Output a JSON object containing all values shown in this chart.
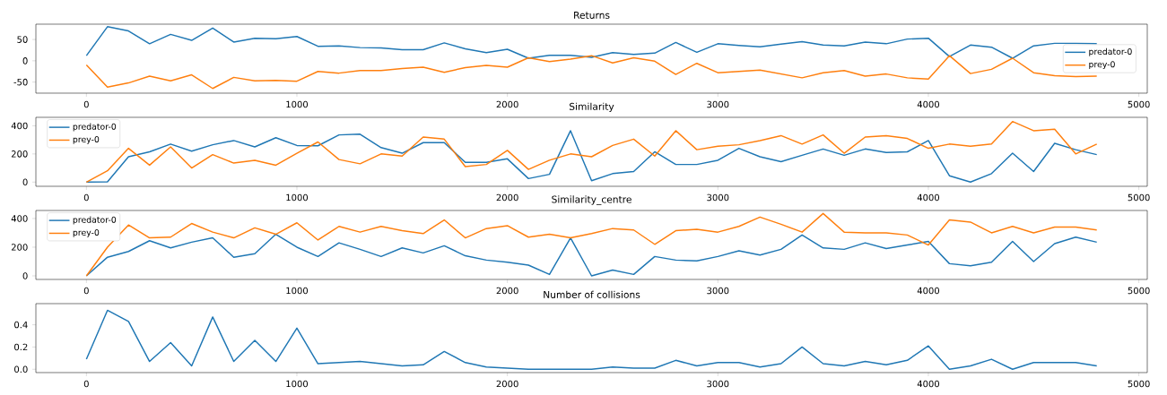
{
  "chart_data": [
    {
      "type": "line",
      "title": "Returns",
      "x": [
        0,
        100,
        200,
        300,
        400,
        500,
        600,
        700,
        800,
        900,
        1000,
        1100,
        1200,
        1300,
        1400,
        1500,
        1600,
        1700,
        1800,
        1900,
        2000,
        2100,
        2200,
        2300,
        2400,
        2500,
        2600,
        2700,
        2800,
        2900,
        3000,
        3100,
        3200,
        3300,
        3400,
        3500,
        3600,
        3700,
        3800,
        3900,
        4000,
        4100,
        4200,
        4300,
        4400,
        4500,
        4600,
        4700,
        4800
      ],
      "xlim": [
        -240,
        5040
      ],
      "xticks": [
        0,
        1000,
        2000,
        3000,
        4000,
        5000
      ],
      "ylim": [
        -76,
        86
      ],
      "yticks": [
        -50,
        0,
        50
      ],
      "legend": "right",
      "series": [
        {
          "name": "predator-0",
          "color": "#1f77b4",
          "values": [
            12,
            80,
            70,
            40,
            62,
            48,
            77,
            44,
            53,
            52,
            57,
            34,
            35,
            31,
            30,
            26,
            26,
            42,
            28,
            19,
            27,
            6,
            13,
            13,
            8,
            19,
            15,
            18,
            43,
            20,
            40,
            36,
            33,
            39,
            45,
            37,
            35,
            44,
            40,
            51,
            53,
            10,
            37,
            32,
            6,
            35,
            41,
            41,
            40
          ]
        },
        {
          "name": "prey-0",
          "color": "#ff7f0e",
          "values": [
            -10,
            -62,
            -52,
            -36,
            -47,
            -33,
            -65,
            -39,
            -47,
            -46,
            -48,
            -25,
            -29,
            -23,
            -23,
            -18,
            -15,
            -27,
            -16,
            -11,
            -15,
            7,
            -2,
            4,
            12,
            -5,
            7,
            -1,
            -32,
            -6,
            -28,
            -25,
            -22,
            -31,
            -40,
            -28,
            -23,
            -36,
            -31,
            -40,
            -43,
            12,
            -30,
            -20,
            6,
            -28,
            -35,
            -37,
            -36
          ]
        }
      ]
    },
    {
      "type": "line",
      "title": "Similarity",
      "x": [
        0,
        100,
        200,
        300,
        400,
        500,
        600,
        700,
        800,
        900,
        1000,
        1100,
        1200,
        1300,
        1400,
        1500,
        1600,
        1700,
        1800,
        1900,
        2000,
        2100,
        2200,
        2300,
        2400,
        2500,
        2600,
        2700,
        2800,
        2900,
        3000,
        3100,
        3200,
        3300,
        3400,
        3500,
        3600,
        3700,
        3800,
        3900,
        4000,
        4100,
        4200,
        4300,
        4400,
        4500,
        4600,
        4700,
        4800
      ],
      "xlim": [
        -240,
        5040
      ],
      "xticks": [
        0,
        1000,
        2000,
        3000,
        4000,
        5000
      ],
      "ylim": [
        -30,
        460
      ],
      "yticks": [
        0,
        200,
        400
      ],
      "legend": "top left",
      "series": [
        {
          "name": "predator-0",
          "color": "#1f77b4",
          "values": [
            0,
            2,
            180,
            215,
            270,
            220,
            265,
            295,
            250,
            315,
            260,
            258,
            335,
            340,
            245,
            205,
            280,
            280,
            140,
            140,
            165,
            25,
            55,
            365,
            10,
            60,
            75,
            215,
            125,
            125,
            155,
            240,
            180,
            145,
            190,
            235,
            190,
            235,
            210,
            215,
            295,
            45,
            0,
            60,
            205,
            75,
            275,
            230,
            195
          ]
        },
        {
          "name": "prey-0",
          "color": "#ff7f0e",
          "values": [
            0,
            80,
            240,
            120,
            250,
            100,
            195,
            135,
            155,
            120,
            205,
            285,
            160,
            130,
            200,
            185,
            320,
            305,
            110,
            125,
            225,
            90,
            155,
            200,
            180,
            260,
            305,
            185,
            365,
            230,
            255,
            265,
            295,
            330,
            270,
            335,
            205,
            320,
            330,
            310,
            240,
            270,
            255,
            270,
            430,
            365,
            375,
            200,
            270
          ]
        }
      ]
    },
    {
      "type": "line",
      "title": "Similarity_centre",
      "x": [
        0,
        100,
        200,
        300,
        400,
        500,
        600,
        700,
        800,
        900,
        1000,
        1100,
        1200,
        1300,
        1400,
        1500,
        1600,
        1700,
        1800,
        1900,
        2000,
        2100,
        2200,
        2300,
        2400,
        2500,
        2600,
        2700,
        2800,
        2900,
        3000,
        3100,
        3200,
        3300,
        3400,
        3500,
        3600,
        3700,
        3800,
        3900,
        4000,
        4100,
        4200,
        4300,
        4400,
        4500,
        4600,
        4700,
        4800
      ],
      "xlim": [
        -240,
        5040
      ],
      "xticks": [
        0,
        1000,
        2000,
        3000,
        4000,
        5000
      ],
      "ylim": [
        -25,
        456
      ],
      "yticks": [
        0,
        200,
        400
      ],
      "legend": "top left",
      "series": [
        {
          "name": "predator-0",
          "color": "#1f77b4",
          "values": [
            0,
            130,
            170,
            245,
            195,
            235,
            265,
            130,
            155,
            290,
            200,
            135,
            230,
            185,
            135,
            195,
            160,
            210,
            140,
            110,
            95,
            75,
            10,
            265,
            0,
            40,
            10,
            135,
            110,
            105,
            135,
            175,
            145,
            185,
            285,
            195,
            185,
            230,
            190,
            215,
            240,
            85,
            70,
            95,
            240,
            100,
            225,
            270,
            235
          ]
        },
        {
          "name": "prey-0",
          "color": "#ff7f0e",
          "values": [
            0,
            200,
            355,
            265,
            270,
            365,
            305,
            265,
            335,
            290,
            370,
            250,
            345,
            305,
            345,
            315,
            295,
            390,
            265,
            330,
            350,
            270,
            290,
            265,
            295,
            330,
            320,
            220,
            315,
            325,
            305,
            345,
            410,
            360,
            305,
            435,
            305,
            300,
            300,
            285,
            215,
            390,
            375,
            300,
            345,
            300,
            340,
            340,
            320
          ]
        }
      ]
    },
    {
      "type": "line",
      "title": "Number of collisions",
      "x": [
        0,
        100,
        200,
        300,
        400,
        500,
        600,
        700,
        800,
        900,
        1000,
        1100,
        1200,
        1300,
        1400,
        1500,
        1600,
        1700,
        1800,
        1900,
        2000,
        2100,
        2200,
        2300,
        2400,
        2500,
        2600,
        2700,
        2800,
        2900,
        3000,
        3100,
        3200,
        3300,
        3400,
        3500,
        3600,
        3700,
        3800,
        3900,
        4000,
        4100,
        4200,
        4300,
        4400,
        4500,
        4600,
        4700,
        4800
      ],
      "xlim": [
        -240,
        5040
      ],
      "xticks": [
        0,
        1000,
        2000,
        3000,
        4000,
        5000
      ],
      "ylim": [
        -0.03,
        0.59
      ],
      "yticks": [
        {
          "value": 0,
          "label": "0.0"
        },
        0.2,
        0.4
      ],
      "series": [
        {
          "color": "#1f77b4",
          "values": [
            0.09,
            0.53,
            0.43,
            0.07,
            0.24,
            0.03,
            0.47,
            0.07,
            0.26,
            0.07,
            0.37,
            0.05,
            0.06,
            0.07,
            0.05,
            0.03,
            0.04,
            0.16,
            0.06,
            0.02,
            0.01,
            0.0,
            0.0,
            0.0,
            0.0,
            0.02,
            0.01,
            0.01,
            0.08,
            0.03,
            0.06,
            0.06,
            0.02,
            0.05,
            0.2,
            0.05,
            0.03,
            0.07,
            0.04,
            0.08,
            0.21,
            0.0,
            0.03,
            0.09,
            0.0,
            0.06,
            0.06,
            0.06,
            0.03
          ]
        }
      ]
    }
  ]
}
